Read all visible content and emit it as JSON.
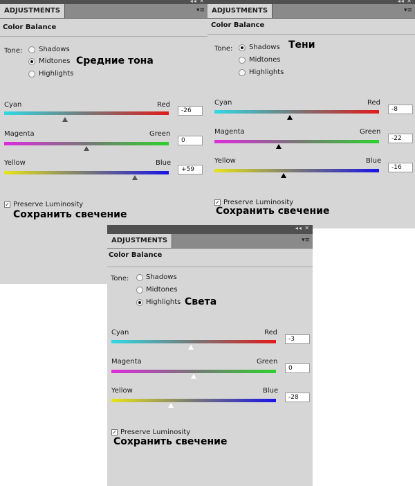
{
  "panels": [
    {
      "tab": "ADJUSTMENTS",
      "title": "Color Balance",
      "tone_label": "Tone:",
      "tones": [
        "Shadows",
        "Midtones",
        "Highlights"
      ],
      "selected_tone": "Midtones",
      "annotation": "Средние тона",
      "sliders": [
        {
          "left": "Cyan",
          "right": "Red",
          "value": "-26",
          "level": -26
        },
        {
          "left": "Magenta",
          "right": "Green",
          "value": "0",
          "level": 0
        },
        {
          "left": "Yellow",
          "right": "Blue",
          "value": "+59",
          "level": 59
        }
      ],
      "preserve_label": "Preserve Luminosity",
      "preserve_checked": true,
      "preserve_annotation": "Сохранить свечение"
    },
    {
      "tab": "ADJUSTMENTS",
      "title": "Color Balance",
      "tone_label": "Tone:",
      "tones": [
        "Shadows",
        "Midtones",
        "Highlights"
      ],
      "selected_tone": "Shadows",
      "annotation": "Тени",
      "sliders": [
        {
          "left": "Cyan",
          "right": "Red",
          "value": "-8",
          "level": -8
        },
        {
          "left": "Magenta",
          "right": "Green",
          "value": "-22",
          "level": -22
        },
        {
          "left": "Yellow",
          "right": "Blue",
          "value": "-16",
          "level": -16
        }
      ],
      "preserve_label": "Preserve Luminosity",
      "preserve_checked": true,
      "preserve_annotation": "Сохранить свечение"
    },
    {
      "tab": "ADJUSTMENTS",
      "title": "Color Balance",
      "tone_label": "Tone:",
      "tones": [
        "Shadows",
        "Midtones",
        "Highlights"
      ],
      "selected_tone": "Highlights",
      "annotation": "Света",
      "sliders": [
        {
          "left": "Cyan",
          "right": "Red",
          "value": "-3",
          "level": -3
        },
        {
          "left": "Magenta",
          "right": "Green",
          "value": "0",
          "level": 0
        },
        {
          "left": "Yellow",
          "right": "Blue",
          "value": "-28",
          "level": -28
        }
      ],
      "preserve_label": "Preserve Luminosity",
      "preserve_checked": true,
      "preserve_annotation": "Сохранить свечение"
    }
  ],
  "icons": {
    "collapse": "double-chevron-left-icon",
    "close": "close-icon",
    "menu": "panel-menu-icon"
  }
}
